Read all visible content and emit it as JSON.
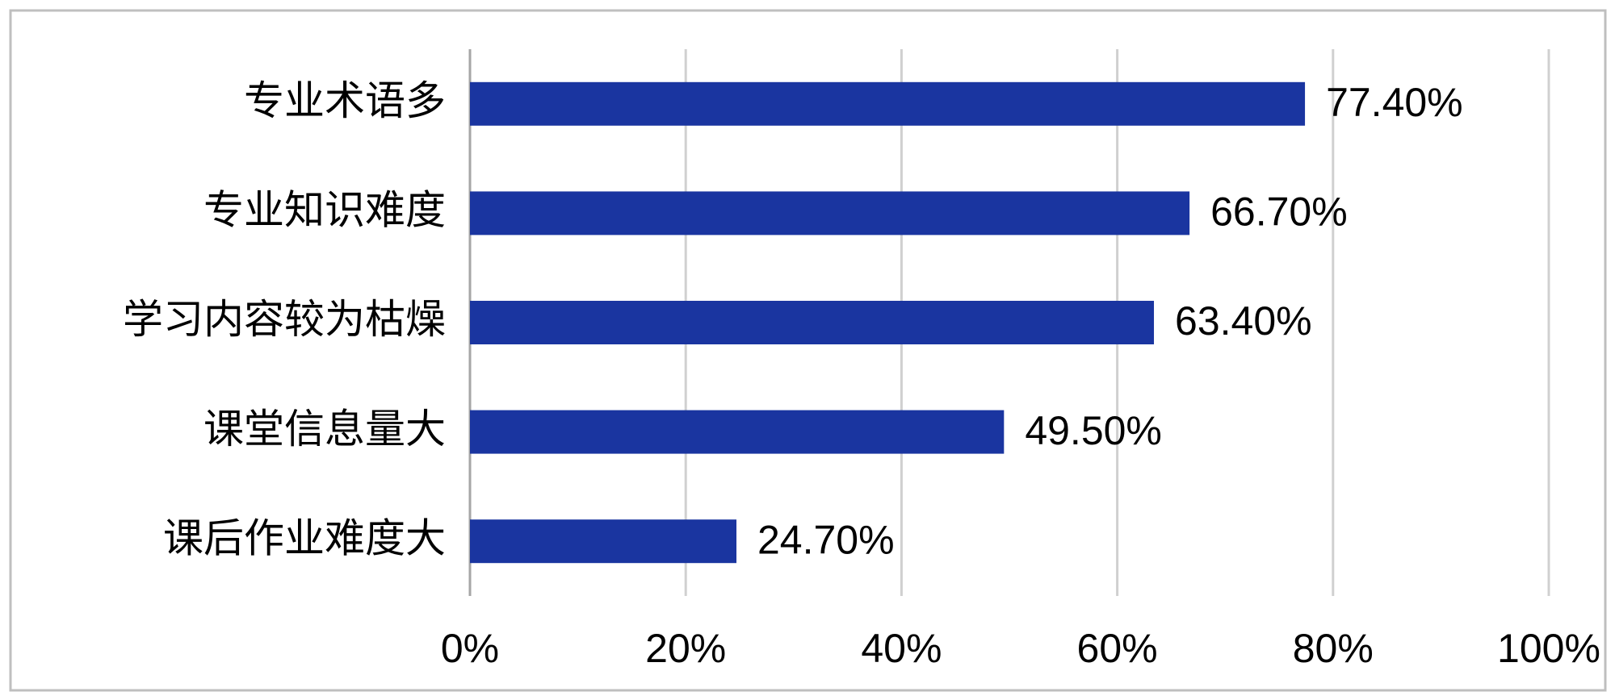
{
  "chart_data": {
    "type": "barh",
    "categories": [
      "专业术语多",
      "专业知识难度",
      "学习内容较为枯燥",
      "课堂信息量大",
      "课后作业难度大"
    ],
    "values": [
      77.4,
      66.7,
      63.4,
      49.5,
      24.7
    ],
    "value_labels": [
      "77.40%",
      "66.70%",
      "63.40%",
      "49.50%",
      "24.70%"
    ],
    "color": "#1a35a0",
    "xlim": [
      0,
      100
    ],
    "xticks": [
      {
        "value": 0,
        "label": "0%"
      },
      {
        "value": 20,
        "label": "20%"
      },
      {
        "value": 40,
        "label": "40%"
      },
      {
        "value": 60,
        "label": "60%"
      },
      {
        "value": 80,
        "label": "80%"
      },
      {
        "value": 100,
        "label": "100%"
      }
    ],
    "grid": true
  }
}
